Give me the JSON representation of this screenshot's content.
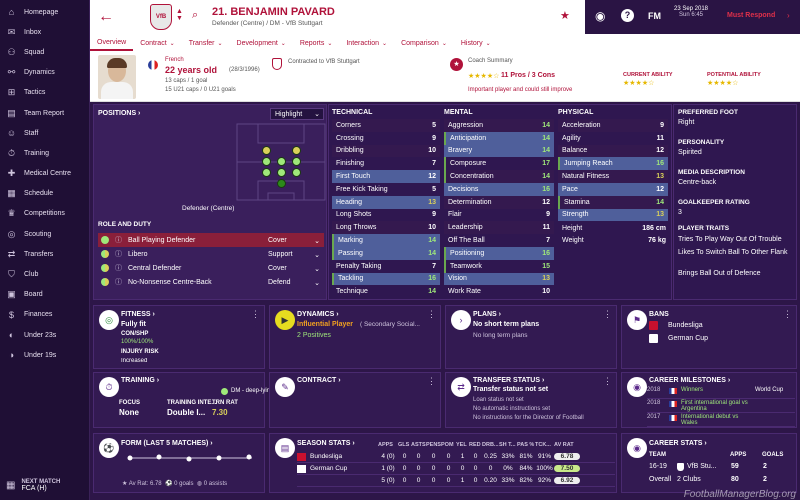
{
  "sidebar": {
    "items": [
      {
        "label": "Homepage",
        "icon": "home-icon"
      },
      {
        "label": "Inbox",
        "icon": "mail-icon"
      },
      {
        "label": "Squad",
        "icon": "users-icon"
      },
      {
        "label": "Dynamics",
        "icon": "dynamics-icon"
      },
      {
        "label": "Tactics",
        "icon": "tactics-icon"
      },
      {
        "label": "Team Report",
        "icon": "report-icon"
      },
      {
        "label": "Staff",
        "icon": "staff-icon"
      },
      {
        "label": "Training",
        "icon": "training-icon"
      },
      {
        "label": "Medical Centre",
        "icon": "medical-icon"
      },
      {
        "label": "Schedule",
        "icon": "calendar-icon"
      },
      {
        "label": "Competitions",
        "icon": "trophy-icon"
      },
      {
        "label": "Scouting",
        "icon": "scouting-icon"
      },
      {
        "label": "Transfers",
        "icon": "transfers-icon"
      },
      {
        "label": "Club",
        "icon": "club-icon"
      },
      {
        "label": "Board",
        "icon": "board-icon"
      },
      {
        "label": "Finances",
        "icon": "finances-icon"
      },
      {
        "label": "Under 23s",
        "icon": "u23-icon"
      },
      {
        "label": "Under 19s",
        "icon": "u19-icon"
      }
    ],
    "next_match_label": "NEXT MATCH",
    "next_match_value": "FCA (H)"
  },
  "header": {
    "player_name": "21. BENJAMIN PAVARD",
    "subtitle": "Defender (Centre) / DM - VfB Stuttgart",
    "date": "23 Sep 2018",
    "day_time": "Sun 6:45",
    "fm_label": "FM",
    "must_respond": "Must Respond"
  },
  "tabs": [
    "Overview",
    "Contract",
    "Transfer",
    "Development",
    "Reports",
    "Interaction",
    "Comparison",
    "History"
  ],
  "info": {
    "nationality": "French",
    "age": "22 years old",
    "dob": "(28/3/1996)",
    "caps": "13 caps / 1 goal",
    "u21caps": "15 U21 caps / 0 U21 goals",
    "contract": "Contracted to VfB Stuttgart",
    "coach_label": "Coach Summary",
    "pros_cons": "11 Pros / 3 Cons",
    "coach_summary": "Important player and could still improve",
    "current_ability": "CURRENT ABILITY",
    "potential_ability": "POTENTIAL ABILITY",
    "stars_label": "★★★★☆"
  },
  "positions": {
    "title": "POSITIONS ›",
    "highlight": "Highlight",
    "position_label": "Defender (Centre)",
    "role_title": "ROLE AND DUTY",
    "roles": [
      {
        "name": "Ball Playing Defender",
        "duty": "Cover"
      },
      {
        "name": "Libero",
        "duty": "Support"
      },
      {
        "name": "Central Defender",
        "duty": "Cover"
      },
      {
        "name": "No-Nonsense Centre-Back",
        "duty": "Defend"
      }
    ]
  },
  "technical": {
    "title": "TECHNICAL",
    "rows": [
      {
        "n": "Corners",
        "v": "5",
        "c": "wh"
      },
      {
        "n": "Crossing",
        "v": "9",
        "c": "wh"
      },
      {
        "n": "Dribbling",
        "v": "10",
        "c": "wh"
      },
      {
        "n": "Finishing",
        "v": "7",
        "c": "wh"
      },
      {
        "n": "First Touch",
        "v": "12",
        "c": "wh"
      },
      {
        "n": "Free Kick Taking",
        "v": "5",
        "c": "wh"
      },
      {
        "n": "Heading",
        "v": "13",
        "c": "y"
      },
      {
        "n": "Long Shots",
        "v": "9",
        "c": "wh"
      },
      {
        "n": "Long Throws",
        "v": "10",
        "c": "wh"
      },
      {
        "n": "Marking",
        "v": "14",
        "c": "g"
      },
      {
        "n": "Passing",
        "v": "14",
        "c": "g"
      },
      {
        "n": "Penalty Taking",
        "v": "7",
        "c": "wh"
      },
      {
        "n": "Tackling",
        "v": "16",
        "c": "g"
      },
      {
        "n": "Technique",
        "v": "14",
        "c": "g"
      }
    ]
  },
  "mental": {
    "title": "MENTAL",
    "rows": [
      {
        "n": "Aggression",
        "v": "14",
        "c": "g"
      },
      {
        "n": "Anticipation",
        "v": "14",
        "c": "g"
      },
      {
        "n": "Bravery",
        "v": "14",
        "c": "g"
      },
      {
        "n": "Composure",
        "v": "17",
        "c": "g"
      },
      {
        "n": "Concentration",
        "v": "14",
        "c": "g"
      },
      {
        "n": "Decisions",
        "v": "16",
        "c": "g"
      },
      {
        "n": "Determination",
        "v": "12",
        "c": "wh"
      },
      {
        "n": "Flair",
        "v": "9",
        "c": "wh"
      },
      {
        "n": "Leadership",
        "v": "11",
        "c": "wh"
      },
      {
        "n": "Off The Ball",
        "v": "7",
        "c": "wh"
      },
      {
        "n": "Positioning",
        "v": "16",
        "c": "g"
      },
      {
        "n": "Teamwork",
        "v": "15",
        "c": "g"
      },
      {
        "n": "Vision",
        "v": "13",
        "c": "y"
      },
      {
        "n": "Work Rate",
        "v": "10",
        "c": "wh"
      }
    ]
  },
  "physical": {
    "title": "PHYSICAL",
    "rows": [
      {
        "n": "Acceleration",
        "v": "9",
        "c": "wh"
      },
      {
        "n": "Agility",
        "v": "11",
        "c": "wh"
      },
      {
        "n": "Balance",
        "v": "12",
        "c": "wh"
      },
      {
        "n": "Jumping Reach",
        "v": "16",
        "c": "g"
      },
      {
        "n": "Natural Fitness",
        "v": "13",
        "c": "y"
      },
      {
        "n": "Pace",
        "v": "12",
        "c": "wh"
      },
      {
        "n": "Stamina",
        "v": "14",
        "c": "g"
      },
      {
        "n": "Strength",
        "v": "13",
        "c": "y"
      }
    ],
    "height_label": "Height",
    "height": "186 cm",
    "weight_label": "Weight",
    "weight": "76 kg"
  },
  "traits": {
    "pf_label": "PREFERRED FOOT",
    "pf": "Right",
    "pers_label": "PERSONALITY",
    "pers": "Spirited",
    "media_label": "MEDIA DESCRIPTION",
    "media": "Centre-back",
    "gk_label": "GOALKEEPER RATING",
    "gk": "3",
    "traits_label": "PLAYER TRAITS",
    "t1": "Tries To Play Way Out Of Trouble",
    "t2": "Likes To Switch Ball To Other Flank",
    "t3": "Brings Ball Out of Defence"
  },
  "fitness": {
    "title": "FITNESS ›",
    "status": "Fully fit",
    "cs_label": "CON/SHP",
    "cs": "100%/100%",
    "injury_label": "INJURY RISK",
    "injury": "Increased"
  },
  "dynamics": {
    "title": "DYNAMICS ›",
    "status": "Influential Player",
    "group": "( Secondary Social...",
    "positives": "2 Positives"
  },
  "plans": {
    "title": "PLANS ›",
    "p1": "No short term plans",
    "p2": "No long term plans"
  },
  "bans": {
    "title": "BANS",
    "c1": "Bundesliga",
    "c2": "German Cup"
  },
  "training": {
    "title": "TRAINING ›",
    "role": "DM - deep-lying playmaker (defend)",
    "focus_label": "FOCUS",
    "focus": "None",
    "ti_label": "TRAINING INTE...",
    "ti": "Double I...",
    "rat_label": "TRN RAT",
    "rat": "7.30"
  },
  "contract": {
    "title": "CONTRACT ›"
  },
  "transfer": {
    "title": "TRANSFER STATUS ›",
    "status": "Transfer status not set",
    "l1": "Loan status not set",
    "l2": "No automatic instructions set",
    "l3": "No instructions for the Director of Football"
  },
  "milestones": {
    "title": "CAREER MILESTONES ›",
    "items": [
      {
        "year": "2018",
        "event": "Winners",
        "comp": "World Cup"
      },
      {
        "year": "2018",
        "event": "First international goal vs Argentina",
        "comp": ""
      },
      {
        "year": "2017",
        "event": "International debut vs Wales",
        "comp": ""
      }
    ]
  },
  "form": {
    "title": "FORM (LAST 5 MATCHES) ›",
    "avg": "Av Rat: 6.78",
    "goals": "0 goals",
    "assists": "0 assists"
  },
  "season": {
    "title": "SEASON STATS ›",
    "headers": [
      "APPS",
      "GLS",
      "ASTS",
      "PENS",
      "POM",
      "YEL",
      "RED",
      "DRB...",
      "SH T...",
      "PAS %",
      "TCK...",
      "AV RAT"
    ],
    "rows": [
      {
        "comp": "Bundesliga",
        "vals": [
          "4 (0)",
          "0",
          "0",
          "0",
          "0",
          "1",
          "0",
          "0.25",
          "33%",
          "81%",
          "91%"
        ],
        "rat": "6.78"
      },
      {
        "comp": "German Cup",
        "vals": [
          "1 (0)",
          "0",
          "0",
          "0",
          "0",
          "0",
          "0",
          "0",
          "0%",
          "84%",
          "100%"
        ],
        "rat": "7.50"
      },
      {
        "comp": "",
        "vals": [
          "5 (0)",
          "0",
          "0",
          "0",
          "0",
          "1",
          "0",
          "0.20",
          "33%",
          "82%",
          "92%"
        ],
        "rat": "6.92"
      }
    ]
  },
  "career": {
    "title": "CAREER STATS ›",
    "h1": "TEAM",
    "h2": "APPS",
    "h3": "GOALS",
    "r1": {
      "yr": "16-19",
      "team": "VfB Stu...",
      "apps": "59",
      "goals": "2"
    },
    "r2": {
      "yr": "Overall",
      "team": "2 Clubs",
      "apps": "80",
      "goals": "2"
    }
  },
  "watermark": "FootballManagerBlog.org",
  "colors": {
    "brand": "#b0123a",
    "panel": "#3a1f5c",
    "sidebar": "#1f0f35",
    "good": "#9fe87a"
  }
}
